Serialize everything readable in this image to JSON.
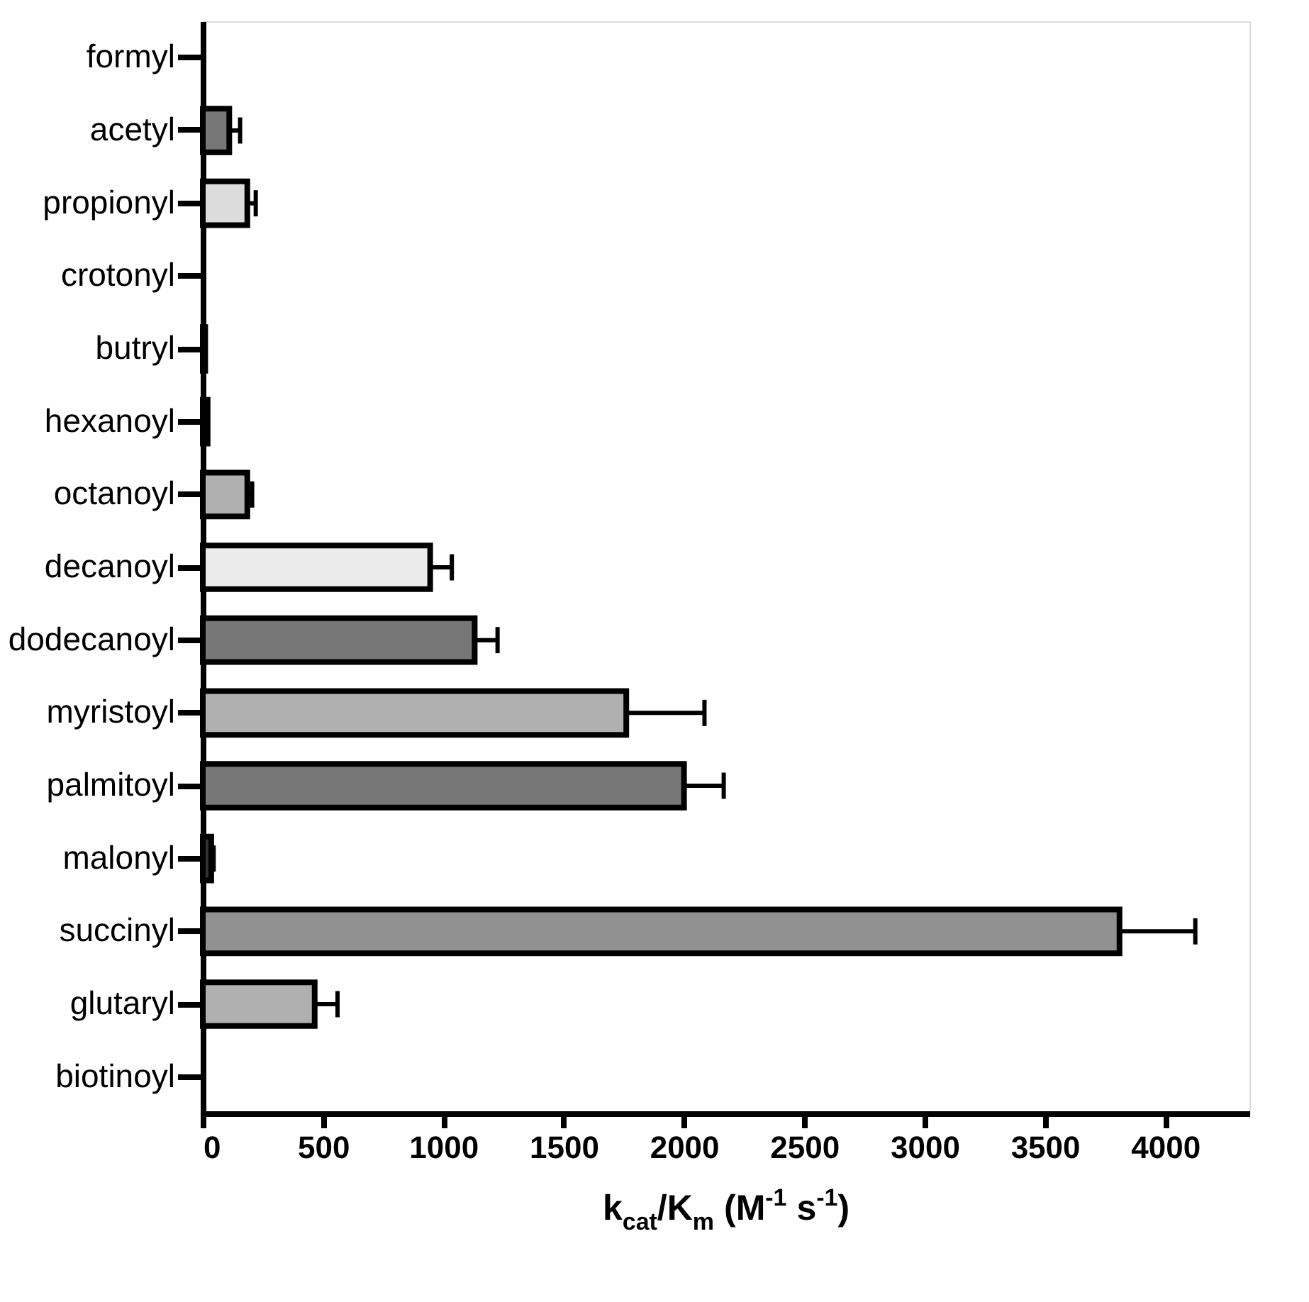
{
  "chart_data": {
    "type": "bar",
    "orientation": "horizontal",
    "categories": [
      "formyl",
      "acetyl",
      "propionyl",
      "crotonyl",
      "butryl",
      "hexanoyl",
      "octanoyl",
      "decanoyl",
      "dodecanoyl",
      "myristoyl",
      "palmitoyl",
      "malonyl",
      "succinyl",
      "glutaryl",
      "biotinoyl"
    ],
    "values": [
      null,
      110,
      185,
      null,
      10,
      20,
      185,
      945,
      1130,
      1760,
      2000,
      35,
      3810,
      465,
      null
    ],
    "errors": [
      null,
      45,
      35,
      null,
      null,
      null,
      20,
      90,
      95,
      325,
      165,
      10,
      315,
      95,
      null
    ],
    "colors": [
      null,
      "#777777",
      "#dcdcdc",
      null,
      "#777777",
      "#777777",
      "#b0b0b0",
      "#ebebeb",
      "#777777",
      "#b0b0b0",
      "#777777",
      "#333333",
      "#919191",
      "#b0b0b0",
      null
    ],
    "xlabel": "k$_{cat}$/K$_{m}$ (M$^{-1}$ s$^{-1}$)",
    "xlim": [
      0,
      4350
    ],
    "xticks": [
      0,
      500,
      1000,
      1500,
      2000,
      2500,
      3000,
      3500,
      4000
    ],
    "grid": false
  }
}
